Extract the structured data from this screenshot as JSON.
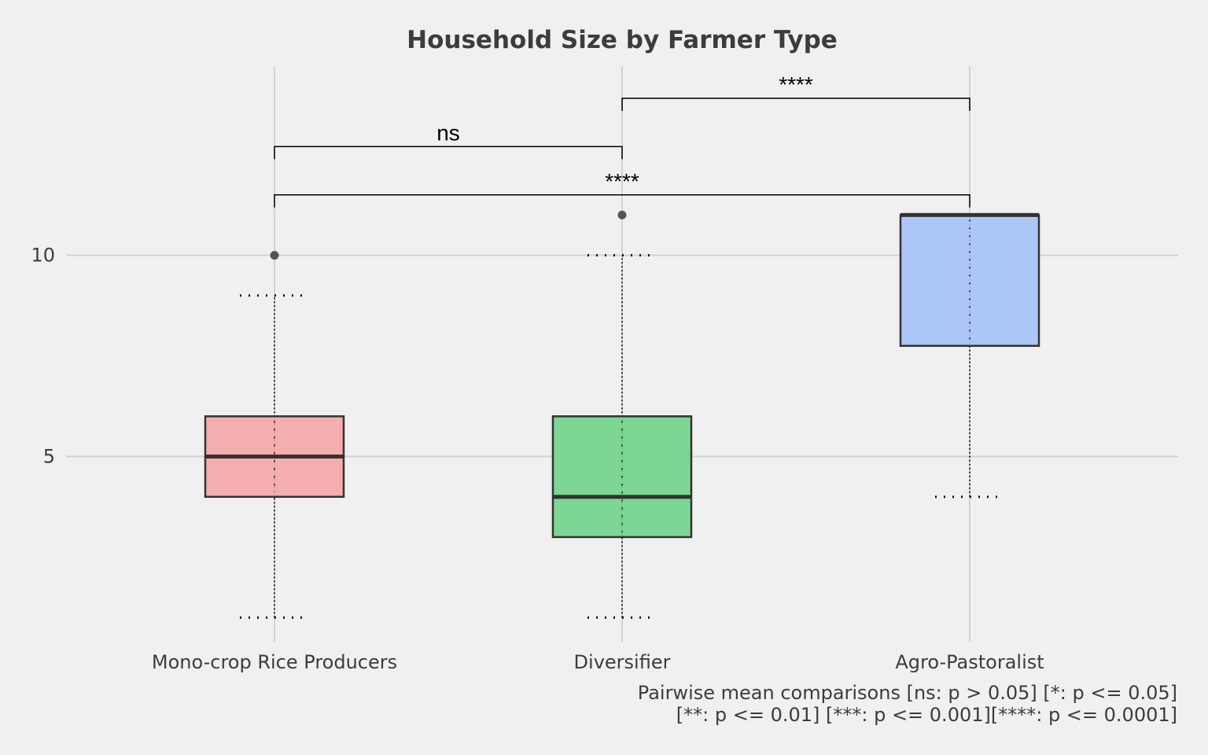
{
  "chart_data": {
    "type": "box",
    "title": "Household Size by Farmer Type",
    "xlabel": "",
    "ylabel": "",
    "ylim": [
      0.4,
      14.7
    ],
    "y_ticks": [
      5,
      10
    ],
    "y_tick_labels": [
      "5",
      "10"
    ],
    "grid": true,
    "categories": [
      "Mono-crop Rice Producers",
      "Diversifier",
      "Agro-Pastoralist"
    ],
    "colors": [
      "#f4a6a6",
      "#6fd38a",
      "#a4c2f7"
    ],
    "boxes": [
      {
        "category": "Mono-crop Rice Producers",
        "whisker_low": 1,
        "q1": 4,
        "median": 5,
        "q3": 6,
        "whisker_high": 9,
        "outliers": [
          10
        ]
      },
      {
        "category": "Diversifier",
        "whisker_low": 1,
        "q1": 3,
        "median": 4,
        "q3": 6,
        "whisker_high": 10,
        "outliers": [
          11
        ]
      },
      {
        "category": "Agro-Pastoralist",
        "whisker_low": 4,
        "q1": 7.75,
        "median": 11,
        "q3": 11,
        "whisker_high": 11,
        "outliers": []
      }
    ],
    "comparisons": [
      {
        "from": "Mono-crop Rice Producers",
        "to": "Diversifier",
        "label": "ns",
        "y": 12.7
      },
      {
        "from": "Diversifier",
        "to": "Agro-Pastoralist",
        "label": "****",
        "y": 13.9
      },
      {
        "from": "Mono-crop Rice Producers",
        "to": "Agro-Pastoralist",
        "label": "****",
        "y": 11.5
      }
    ],
    "caption": [
      "Pairwise mean comparisons [ns: p > 0.05] [*: p <= 0.05]",
      "[**: p <= 0.01] [***: p <= 0.001][****: p <= 0.0001]"
    ]
  }
}
